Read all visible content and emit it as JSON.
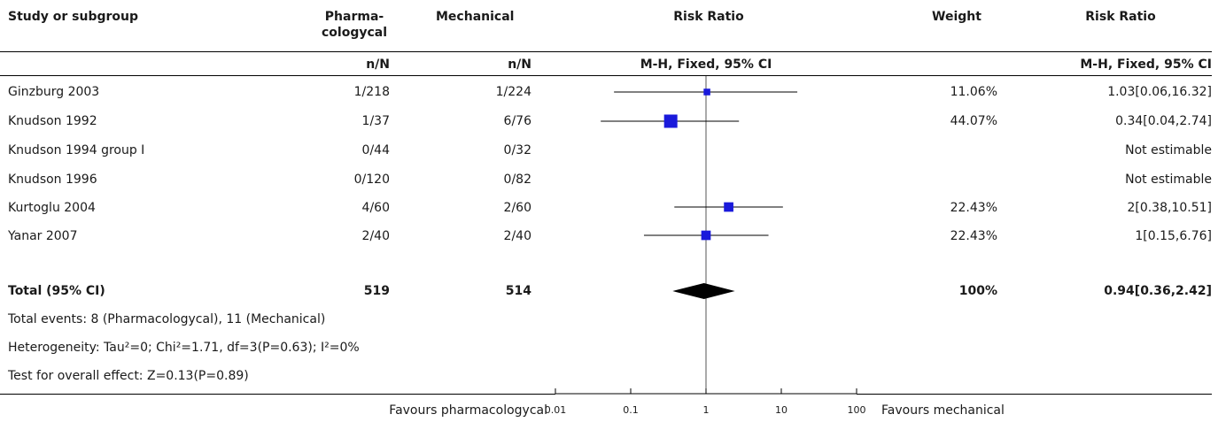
{
  "headers": {
    "study": "Study or subgroup",
    "pharm": "Pharma-\ncologycal",
    "mech": "Mechanical",
    "risk_ratio_plot": "Risk Ratio",
    "weight": "Weight",
    "risk_ratio_text": "Risk Ratio",
    "pharm_sub": "n/N",
    "mech_sub": "n/N",
    "plot_sub": "M-H, Fixed, 95% CI",
    "text_sub": "M-H, Fixed, 95% CI"
  },
  "rows": [
    {
      "study": "Ginzburg 2003",
      "pharm": "1/218",
      "mech": "1/224",
      "weight": "11.06%",
      "rr": "1.03[0.06,16.32]"
    },
    {
      "study": "Knudson 1992",
      "pharm": "1/37",
      "mech": "6/76",
      "weight": "44.07%",
      "rr": "0.34[0.04,2.74]"
    },
    {
      "study": "Knudson 1994 group I",
      "pharm": "0/44",
      "mech": "0/32",
      "weight": "",
      "rr": "Not estimable"
    },
    {
      "study": "Knudson 1996",
      "pharm": "0/120",
      "mech": "0/82",
      "weight": "",
      "rr": "Not estimable"
    },
    {
      "study": "Kurtoglu 2004",
      "pharm": "4/60",
      "mech": "2/60",
      "weight": "22.43%",
      "rr": "2[0.38,10.51]"
    },
    {
      "study": "Yanar 2007",
      "pharm": "2/40",
      "mech": "2/40",
      "weight": "22.43%",
      "rr": "1[0.15,6.76]"
    }
  ],
  "total": {
    "label": "Total (95% CI)",
    "pharm": "519",
    "mech": "514",
    "weight": "100%",
    "rr": "0.94[0.36,2.42]"
  },
  "notes": [
    "Total events: 8 (Pharmacologycal), 11 (Mechanical)",
    "Heterogeneity: Tau²=0; Chi²=1.71, df=3(P=0.63); I²=0%",
    "Test for overall effect: Z=0.13(P=0.89)"
  ],
  "footer": {
    "favours_left": "Favours pharmacologycal",
    "favours_right": "Favours mechanical"
  },
  "chart_data": {
    "type": "forest",
    "scale": "log",
    "xlim": [
      0.01,
      100
    ],
    "ticks": [
      0.01,
      0.1,
      1,
      10,
      100
    ],
    "tick_labels": [
      "0.01",
      "0.1",
      "1",
      "10",
      "100"
    ],
    "reference_line": 1,
    "studies": [
      {
        "name": "Ginzburg 2003",
        "rr": 1.03,
        "lo": 0.06,
        "hi": 16.32,
        "weight": 11.06
      },
      {
        "name": "Knudson 1992",
        "rr": 0.34,
        "lo": 0.04,
        "hi": 2.74,
        "weight": 44.07
      },
      {
        "name": "Knudson 1994 group I",
        "rr": null,
        "lo": null,
        "hi": null,
        "weight": 0
      },
      {
        "name": "Knudson 1996",
        "rr": null,
        "lo": null,
        "hi": null,
        "weight": 0
      },
      {
        "name": "Kurtoglu 2004",
        "rr": 2,
        "lo": 0.38,
        "hi": 10.51,
        "weight": 22.43
      },
      {
        "name": "Yanar 2007",
        "rr": 1,
        "lo": 0.15,
        "hi": 6.76,
        "weight": 22.43
      }
    ],
    "pooled": {
      "rr": 0.94,
      "lo": 0.36,
      "hi": 2.42
    },
    "colors": {
      "marker": "#1a1adb",
      "diamond": "#000000",
      "line": "#000000"
    }
  }
}
